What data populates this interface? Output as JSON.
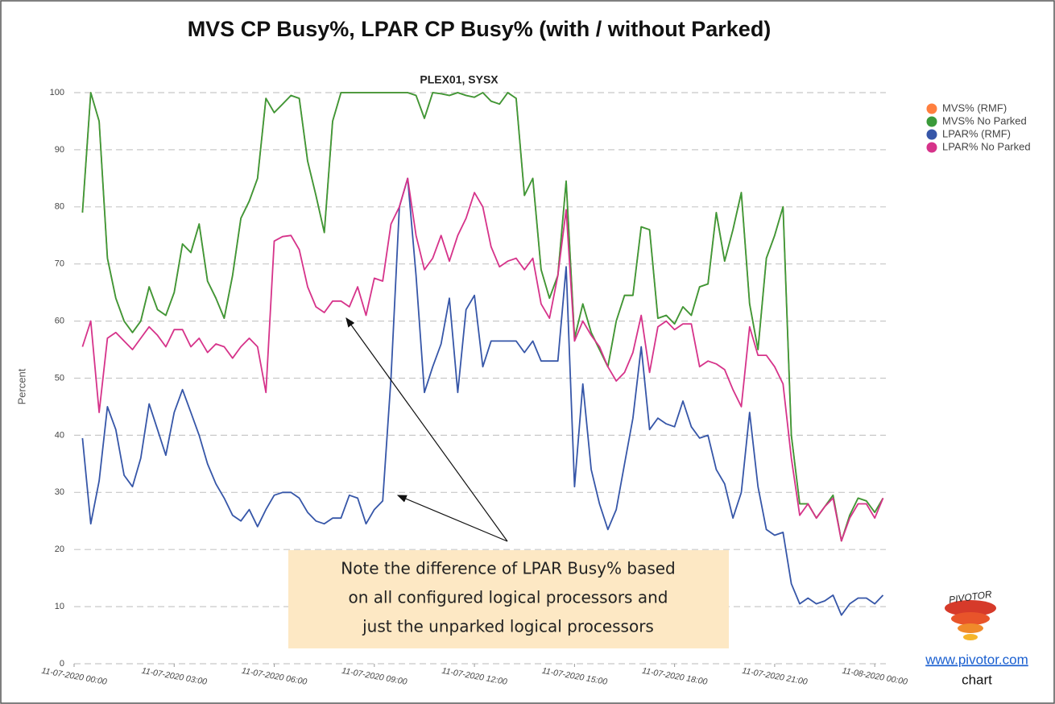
{
  "chart_data": {
    "type": "line",
    "title": "MVS CP Busy%, LPAR CP Busy% (with / without Parked)",
    "subtitle": "PLEX01, SYSX",
    "y_label": "Percent",
    "annotations": [
      "Note the difference of LPAR Busy% based",
      "on all configured logical processors and",
      "just the unparked logical processors"
    ],
    "logo": "PIVOTOR",
    "link": "www.pivotor.com",
    "link_caption": "chart",
    "legend": "top-right",
    "grid": true,
    "ylim": [
      0,
      100
    ],
    "yticks": [
      0,
      10,
      20,
      30,
      40,
      50,
      60,
      70,
      80,
      90,
      100
    ],
    "xlim": [
      "11-07-2020 00:00",
      "11-08-2020 00:20"
    ],
    "xticks": [
      "11-07-2020 00:00",
      "11-07-2020 03:00",
      "11-07-2020 06:00",
      "11-07-2020 09:00",
      "11-07-2020 12:00",
      "11-07-2020 15:00",
      "11-07-2020 18:00",
      "11-07-2020 21:00",
      "11-08-2020 00:00"
    ],
    "x": [
      "11-07-2020 00:15",
      "11-07-2020 00:30",
      "11-07-2020 00:45",
      "11-07-2020 01:00",
      "11-07-2020 01:15",
      "11-07-2020 01:30",
      "11-07-2020 01:45",
      "11-07-2020 02:00",
      "11-07-2020 02:15",
      "11-07-2020 02:30",
      "11-07-2020 02:45",
      "11-07-2020 03:00",
      "11-07-2020 03:15",
      "11-07-2020 03:30",
      "11-07-2020 03:45",
      "11-07-2020 04:00",
      "11-07-2020 04:15",
      "11-07-2020 04:30",
      "11-07-2020 04:45",
      "11-07-2020 05:00",
      "11-07-2020 05:15",
      "11-07-2020 05:30",
      "11-07-2020 05:45",
      "11-07-2020 06:00",
      "11-07-2020 06:15",
      "11-07-2020 06:30",
      "11-07-2020 06:45",
      "11-07-2020 07:00",
      "11-07-2020 07:15",
      "11-07-2020 07:30",
      "11-07-2020 07:45",
      "11-07-2020 08:00",
      "11-07-2020 08:15",
      "11-07-2020 08:30",
      "11-07-2020 08:45",
      "11-07-2020 09:00",
      "11-07-2020 09:15",
      "11-07-2020 09:30",
      "11-07-2020 09:45",
      "11-07-2020 10:00",
      "11-07-2020 10:15",
      "11-07-2020 10:30",
      "11-07-2020 10:45",
      "11-07-2020 11:00",
      "11-07-2020 11:15",
      "11-07-2020 11:30",
      "11-07-2020 11:45",
      "11-07-2020 12:00",
      "11-07-2020 12:15",
      "11-07-2020 12:30",
      "11-07-2020 12:45",
      "11-07-2020 13:00",
      "11-07-2020 13:15",
      "11-07-2020 13:30",
      "11-07-2020 13:45",
      "11-07-2020 14:00",
      "11-07-2020 14:15",
      "11-07-2020 14:30",
      "11-07-2020 14:45",
      "11-07-2020 15:00",
      "11-07-2020 15:15",
      "11-07-2020 15:30",
      "11-07-2020 15:45",
      "11-07-2020 16:00",
      "11-07-2020 16:15",
      "11-07-2020 16:30",
      "11-07-2020 16:45",
      "11-07-2020 17:00",
      "11-07-2020 17:15",
      "11-07-2020 17:30",
      "11-07-2020 17:45",
      "11-07-2020 18:00",
      "11-07-2020 18:15",
      "11-07-2020 18:30",
      "11-07-2020 18:45",
      "11-07-2020 19:00",
      "11-07-2020 19:15",
      "11-07-2020 19:30",
      "11-07-2020 19:45",
      "11-07-2020 20:00",
      "11-07-2020 20:15",
      "11-07-2020 20:30",
      "11-07-2020 20:45",
      "11-07-2020 21:00",
      "11-07-2020 21:15",
      "11-07-2020 21:30",
      "11-07-2020 21:45",
      "11-07-2020 22:00",
      "11-07-2020 22:15",
      "11-07-2020 22:30",
      "11-07-2020 22:45",
      "11-07-2020 23:00",
      "11-07-2020 23:15",
      "11-07-2020 23:30",
      "11-07-2020 23:45",
      "11-08-2020 00:00",
      "11-08-2020 00:15"
    ],
    "series": [
      {
        "name": "MVS% (RMF)",
        "color": "#ff7f3f",
        "values": [
          79,
          100,
          95,
          71,
          64,
          60,
          58,
          60,
          66,
          62,
          61,
          65,
          73.5,
          72,
          77,
          67,
          64,
          60.5,
          68,
          78,
          81,
          85,
          99,
          96.5,
          98,
          99.5,
          99,
          88,
          82,
          75.5,
          95,
          100,
          100,
          100,
          100,
          100,
          100,
          100,
          100,
          100,
          99.5,
          95.5,
          100,
          99.8,
          99.5,
          100,
          99.5,
          99.2,
          100,
          98.5,
          98,
          100,
          99,
          82,
          85,
          69,
          64,
          68,
          84.5,
          57,
          63,
          58,
          55,
          52,
          60,
          64.5,
          64.5,
          76.5,
          76,
          60.5,
          61,
          59.5,
          62.5,
          61,
          66,
          66.5,
          79,
          70.5,
          76,
          82.5,
          63,
          55,
          71,
          75,
          80,
          40,
          28,
          28,
          25.5,
          27.5,
          29.5,
          21.5,
          26,
          29,
          28.5,
          26.5,
          29
        ]
      },
      {
        "name": "MVS% No Parked",
        "color": "#3a9a3a",
        "values": [
          79,
          100,
          95,
          71,
          64,
          60,
          58,
          60,
          66,
          62,
          61,
          65,
          73.5,
          72,
          77,
          67,
          64,
          60.5,
          68,
          78,
          81,
          85,
          99,
          96.5,
          98,
          99.5,
          99,
          88,
          82,
          75.5,
          95,
          100,
          100,
          100,
          100,
          100,
          100,
          100,
          100,
          100,
          99.5,
          95.5,
          100,
          99.8,
          99.5,
          100,
          99.5,
          99.2,
          100,
          98.5,
          98,
          100,
          99,
          82,
          85,
          69,
          64,
          68,
          84.5,
          57,
          63,
          58,
          55,
          52,
          60,
          64.5,
          64.5,
          76.5,
          76,
          60.5,
          61,
          59.5,
          62.5,
          61,
          66,
          66.5,
          79,
          70.5,
          76,
          82.5,
          63,
          55,
          71,
          75,
          80,
          40,
          28,
          28,
          25.5,
          27.5,
          29.5,
          21.5,
          26,
          29,
          28.5,
          26.5,
          29
        ]
      },
      {
        "name": "LPAR% (RMF)",
        "color": "#3656a8",
        "values": [
          39.5,
          24.5,
          32,
          45,
          41,
          33,
          31,
          36,
          45.5,
          41,
          36.5,
          44,
          48,
          44,
          40,
          35,
          31.5,
          29,
          26,
          25,
          27,
          24,
          27,
          29.5,
          30,
          30,
          29,
          26.5,
          25,
          24.5,
          25.5,
          25.5,
          29.5,
          29,
          24.5,
          27,
          28.5,
          50,
          80,
          85,
          68,
          47.5,
          52,
          56,
          64,
          47.5,
          62,
          64.5,
          52,
          56.5,
          56.5,
          56.5,
          56.5,
          54.5,
          56.5,
          53,
          53,
          53,
          69.5,
          31,
          49,
          34,
          28,
          23.5,
          27,
          35,
          43,
          55.5,
          41,
          43,
          42,
          41.5,
          46,
          41.5,
          39.5,
          40,
          34,
          31.5,
          25.5,
          30,
          44,
          31,
          23.5,
          22.5,
          23,
          14,
          10.5,
          11.5,
          10.5,
          11,
          12,
          8.5,
          10.5,
          11.5,
          11.5,
          10.5,
          12
        ]
      },
      {
        "name": "LPAR% No Parked",
        "color": "#d6338a",
        "values": [
          55.5,
          60,
          44,
          57,
          58,
          56.5,
          55,
          57,
          59,
          57.5,
          55.5,
          58.5,
          58.5,
          55.5,
          57,
          54.5,
          56,
          55.5,
          53.5,
          55.5,
          57,
          55.5,
          47.5,
          74,
          74.8,
          75,
          72.5,
          66,
          62.5,
          61.5,
          63.5,
          63.5,
          62.5,
          66,
          61,
          67.5,
          67,
          77,
          80,
          85,
          75,
          69,
          71,
          75,
          70.5,
          75,
          78,
          82.5,
          80,
          73,
          69.5,
          70.5,
          71,
          69,
          71,
          63,
          60.5,
          68,
          79.5,
          56.5,
          60,
          57.5,
          55.5,
          52,
          49.5,
          51,
          54.5,
          61,
          51,
          59,
          60,
          58.5,
          59.5,
          59.5,
          52,
          53,
          52.5,
          51.5,
          48,
          45,
          59,
          54,
          54,
          52,
          49,
          36,
          26,
          28,
          25.5,
          27.5,
          29,
          21.5,
          25.5,
          28,
          28,
          25.5,
          29
        ]
      }
    ]
  }
}
